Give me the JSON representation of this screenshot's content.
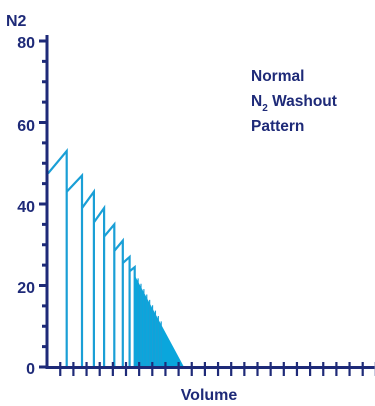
{
  "colors": {
    "axis": "#1e2a78",
    "trace": "#1a9fd6",
    "fill": "#0aa6dc"
  },
  "chart_data": {
    "type": "line",
    "title": "",
    "ylabel": "N2",
    "xlabel": "Volume",
    "ylim": [
      0,
      80
    ],
    "yticks": [
      0,
      20,
      40,
      60,
      80
    ],
    "y_tick_labels": [
      "0",
      "20",
      "40",
      "60",
      "80"
    ],
    "x_tick_count": 26,
    "annotation": {
      "line1": "Normal",
      "line2_main": "N",
      "line2_sub": "2",
      "line2_rest": " Washout",
      "line3": "Pattern"
    },
    "series": [
      {
        "breaths": [
          {
            "x_start": 0,
            "y_start": 47.5,
            "x_end": 5.5,
            "y_end": 53
          },
          {
            "x_start": 5.5,
            "y_start": 43,
            "x_end": 10,
            "y_end": 47
          },
          {
            "x_start": 10,
            "y_start": 39,
            "x_end": 13.5,
            "y_end": 43
          },
          {
            "x_start": 13.5,
            "y_start": 35.5,
            "x_end": 16.5,
            "y_end": 39
          },
          {
            "x_start": 16.5,
            "y_start": 32,
            "x_end": 19.5,
            "y_end": 35
          },
          {
            "x_start": 19.5,
            "y_start": 28.5,
            "x_end": 22,
            "y_end": 31
          },
          {
            "x_start": 22,
            "y_start": 25.5,
            "x_end": 24,
            "y_end": 27
          },
          {
            "x_start": 24,
            "y_start": 23.5,
            "x_end": 25.5,
            "y_end": 24.5
          }
        ],
        "filled_decay": {
          "x_start": 25.5,
          "y_start": 22.5,
          "x_end": 40,
          "y_end": 0
        }
      }
    ]
  }
}
